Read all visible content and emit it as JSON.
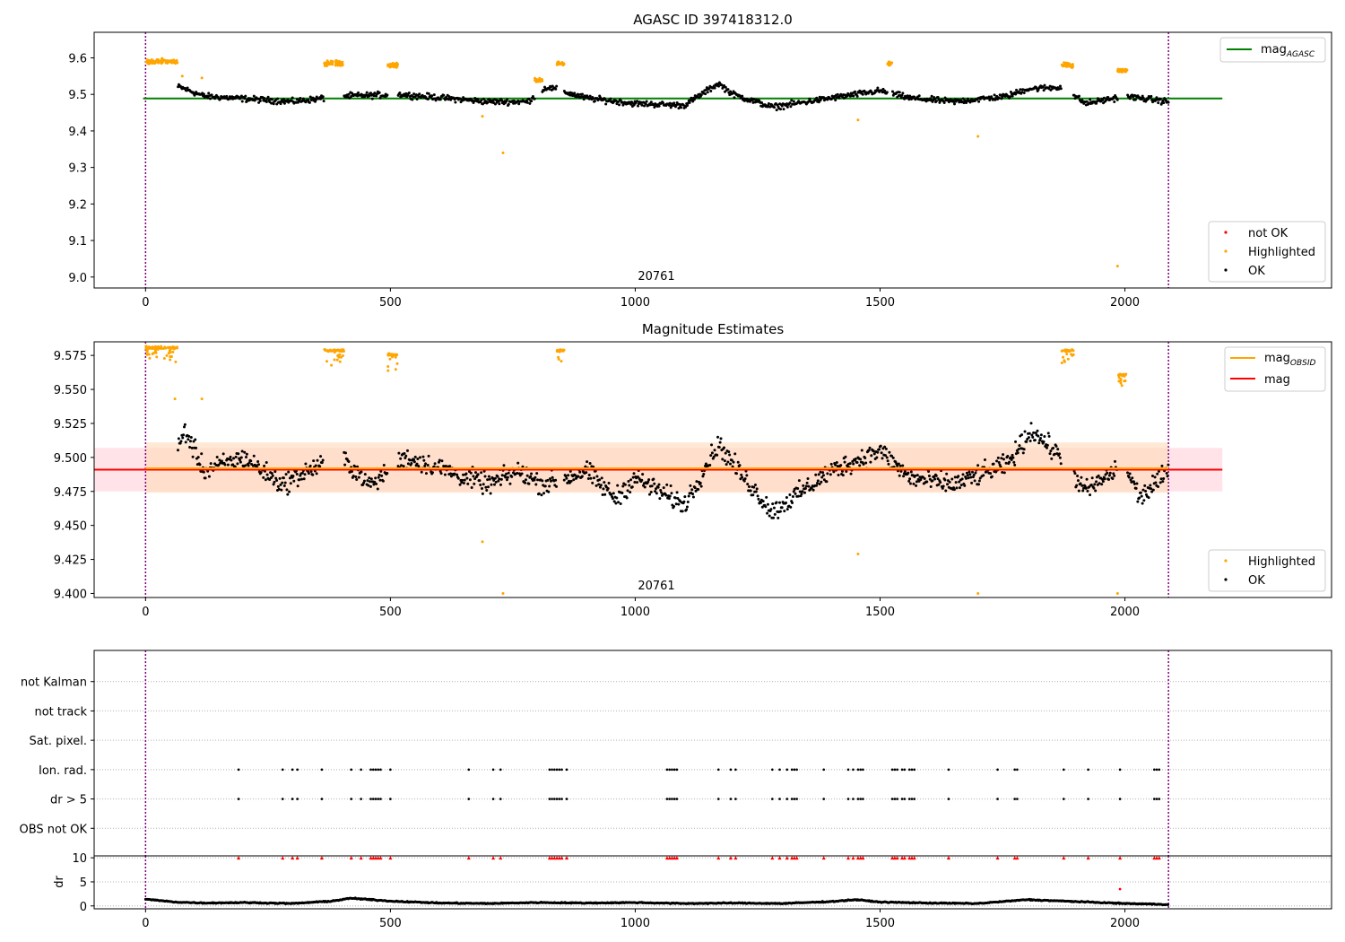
{
  "figure": {
    "title": "AGASC ID 397418312.0",
    "obsid_label": "20761"
  },
  "colors": {
    "ok": "#000000",
    "highlighted": "#ffa500",
    "not_ok": "#ff0000",
    "agasc_line": "#008000",
    "mag_line": "#ff0000",
    "obsid_line": "#ffa500",
    "obs_boundary": "#800080",
    "mag_band": "#ffc0cb",
    "obsid_band": "#ffdab9"
  },
  "chart_data": [
    {
      "type": "scatter",
      "title": "AGASC ID 397418312.0",
      "annotation": "20761",
      "xlim": [
        -105,
        2422
      ],
      "ylim": [
        8.97,
        9.67
      ],
      "xticks": [
        0,
        500,
        1000,
        1500,
        2000
      ],
      "yticks": [
        9.0,
        9.1,
        9.2,
        9.3,
        9.4,
        9.5,
        9.6
      ],
      "ytick_labels": [
        "9.0",
        "9.1",
        "9.2",
        "9.3",
        "9.4",
        "9.5",
        "9.6"
      ],
      "obs_boundaries": [
        0,
        2089
      ],
      "mag_agasc": 9.489,
      "legend_top": [
        {
          "label": "mag",
          "subscript": "AGASC",
          "kind": "line",
          "color": "#008000"
        }
      ],
      "legend_bottom": [
        {
          "label": "not OK",
          "kind": "marker",
          "color": "#ff0000"
        },
        {
          "label": "Highlighted",
          "kind": "marker",
          "color": "#ffa500"
        },
        {
          "label": "OK",
          "kind": "marker",
          "color": "#000000"
        }
      ],
      "ok_baseline": [
        [
          70,
          9.52
        ],
        [
          120,
          9.495
        ],
        [
          300,
          9.48
        ],
        [
          400,
          9.495
        ],
        [
          520,
          9.5
        ],
        [
          700,
          9.48
        ],
        [
          780,
          9.48
        ],
        [
          820,
          9.52
        ],
        [
          900,
          9.49
        ],
        [
          1000,
          9.475
        ],
        [
          1100,
          9.47
        ],
        [
          1170,
          9.53
        ],
        [
          1200,
          9.5
        ],
        [
          1280,
          9.465
        ],
        [
          1400,
          9.49
        ],
        [
          1500,
          9.51
        ],
        [
          1560,
          9.49
        ],
        [
          1650,
          9.48
        ],
        [
          1760,
          9.495
        ],
        [
          1800,
          9.515
        ],
        [
          1870,
          9.52
        ],
        [
          1920,
          9.475
        ],
        [
          2000,
          9.495
        ],
        [
          2089,
          9.48
        ]
      ],
      "highlighted_clusters": [
        {
          "x": [
            0,
            65
          ],
          "y": 9.59
        },
        {
          "x": [
            365,
            405
          ],
          "y": 9.585
        },
        {
          "x": [
            495,
            515
          ],
          "y": 9.58
        },
        {
          "x": [
            795,
            810
          ],
          "y": 9.54
        },
        {
          "x": [
            840,
            855
          ],
          "y": 9.585
        },
        {
          "x": [
            1515,
            1525
          ],
          "y": 9.585
        },
        {
          "x": [
            1870,
            1895
          ],
          "y": 9.58
        },
        {
          "x": [
            1985,
            2005
          ],
          "y": 9.565
        }
      ],
      "highlighted_points": [
        [
          688,
          9.44
        ],
        [
          730,
          9.34
        ],
        [
          1455,
          9.43
        ],
        [
          1700,
          9.385
        ],
        [
          1985,
          9.03
        ],
        [
          75,
          9.55
        ],
        [
          115,
          9.545
        ]
      ]
    },
    {
      "type": "scatter",
      "title": "Magnitude Estimates",
      "annotation": "20761",
      "xlim": [
        -105,
        2422
      ],
      "ylim": [
        9.397,
        9.585
      ],
      "xticks": [
        0,
        500,
        1000,
        1500,
        2000
      ],
      "yticks": [
        9.4,
        9.425,
        9.45,
        9.475,
        9.5,
        9.525,
        9.55,
        9.575
      ],
      "ytick_labels": [
        "9.400",
        "9.425",
        "9.450",
        "9.475",
        "9.500",
        "9.525",
        "9.550",
        "9.575"
      ],
      "obs_boundaries": [
        0,
        2089
      ],
      "mag": 9.491,
      "mag_band": [
        9.475,
        9.507
      ],
      "mag_obsid": 9.492,
      "mag_obsid_band": [
        9.474,
        9.511
      ],
      "legend_top": [
        {
          "label": "mag",
          "subscript": "OBSID",
          "kind": "line",
          "color": "#ffa500"
        },
        {
          "label": "mag",
          "subscript": "",
          "kind": "line",
          "color": "#ff0000"
        }
      ],
      "legend_bottom": [
        {
          "label": "Highlighted",
          "kind": "marker",
          "color": "#ffa500"
        },
        {
          "label": "OK",
          "kind": "marker",
          "color": "#000000"
        }
      ],
      "ok_baseline": [
        [
          60,
          9.5
        ],
        [
          80,
          9.52
        ],
        [
          120,
          9.49
        ],
        [
          200,
          9.5
        ],
        [
          280,
          9.48
        ],
        [
          330,
          9.49
        ],
        [
          400,
          9.5
        ],
        [
          460,
          9.48
        ],
        [
          530,
          9.5
        ],
        [
          620,
          9.49
        ],
        [
          700,
          9.48
        ],
        [
          760,
          9.49
        ],
        [
          810,
          9.48
        ],
        [
          860,
          9.485
        ],
        [
          900,
          9.49
        ],
        [
          960,
          9.47
        ],
        [
          1000,
          9.485
        ],
        [
          1100,
          9.465
        ],
        [
          1170,
          9.51
        ],
        [
          1200,
          9.495
        ],
        [
          1280,
          9.46
        ],
        [
          1400,
          9.49
        ],
        [
          1500,
          9.505
        ],
        [
          1560,
          9.485
        ],
        [
          1650,
          9.48
        ],
        [
          1760,
          9.495
        ],
        [
          1810,
          9.52
        ],
        [
          1870,
          9.5
        ],
        [
          1920,
          9.475
        ],
        [
          2000,
          9.495
        ],
        [
          2030,
          9.47
        ],
        [
          2089,
          9.49
        ]
      ],
      "highlighted_clusters": [
        {
          "x": [
            0,
            65
          ],
          "y": 9.58
        },
        {
          "x": [
            365,
            405
          ],
          "y": 9.578
        },
        {
          "x": [
            495,
            515
          ],
          "y": 9.575
        },
        {
          "x": [
            840,
            855
          ],
          "y": 9.578
        },
        {
          "x": [
            1870,
            1895
          ],
          "y": 9.578
        },
        {
          "x": [
            1985,
            2005
          ],
          "y": 9.56
        }
      ],
      "highlighted_points": [
        [
          688,
          9.438
        ],
        [
          1455,
          9.429
        ],
        [
          730,
          9.4
        ],
        [
          1700,
          9.4
        ],
        [
          1985,
          9.4
        ],
        [
          60,
          9.543
        ],
        [
          115,
          9.543
        ]
      ]
    },
    {
      "type": "scatter",
      "title": "",
      "xlim": [
        -105,
        2422
      ],
      "categories": [
        "OBS not OK",
        "dr > 5",
        "Ion. rad.",
        "Sat. pixel.",
        "not track",
        "not Kalman"
      ],
      "flag_x": [
        190,
        280,
        300,
        310,
        360,
        420,
        440,
        460,
        465,
        470,
        475,
        480,
        500,
        660,
        710,
        725,
        825,
        830,
        835,
        840,
        845,
        850,
        860,
        1065,
        1070,
        1075,
        1080,
        1085,
        1170,
        1195,
        1205,
        1280,
        1295,
        1310,
        1320,
        1325,
        1330,
        1385,
        1435,
        1445,
        1455,
        1460,
        1465,
        1525,
        1530,
        1535,
        1545,
        1550,
        1560,
        1565,
        1570,
        1640,
        1740,
        1775,
        1780,
        1875,
        1925,
        1990,
        2060,
        2065,
        2070
      ]
    },
    {
      "type": "scatter",
      "title": "",
      "xlim": [
        -105,
        2422
      ],
      "ylim": [
        -0.6,
        10.4
      ],
      "xticks": [
        0,
        500,
        1000,
        1500,
        2000
      ],
      "yticks": [
        0,
        5,
        10
      ],
      "ytick_labels": [
        "0",
        "5",
        "10"
      ],
      "ylabel": "dr",
      "dr_baseline": [
        [
          0,
          1.4
        ],
        [
          60,
          0.8
        ],
        [
          120,
          0.6
        ],
        [
          200,
          0.7
        ],
        [
          300,
          0.5
        ],
        [
          380,
          1.0
        ],
        [
          420,
          1.6
        ],
        [
          500,
          1.0
        ],
        [
          600,
          0.6
        ],
        [
          700,
          0.5
        ],
        [
          800,
          0.7
        ],
        [
          900,
          0.6
        ],
        [
          1000,
          0.7
        ],
        [
          1100,
          0.5
        ],
        [
          1200,
          0.6
        ],
        [
          1300,
          0.5
        ],
        [
          1400,
          0.9
        ],
        [
          1450,
          1.3
        ],
        [
          1500,
          0.8
        ],
        [
          1600,
          0.6
        ],
        [
          1700,
          0.5
        ],
        [
          1800,
          1.3
        ],
        [
          1900,
          0.9
        ],
        [
          2000,
          0.5
        ],
        [
          2089,
          0.3
        ]
      ],
      "dr_clipped_value": 10,
      "dr_outlier": [
        1990,
        3.5
      ]
    }
  ]
}
